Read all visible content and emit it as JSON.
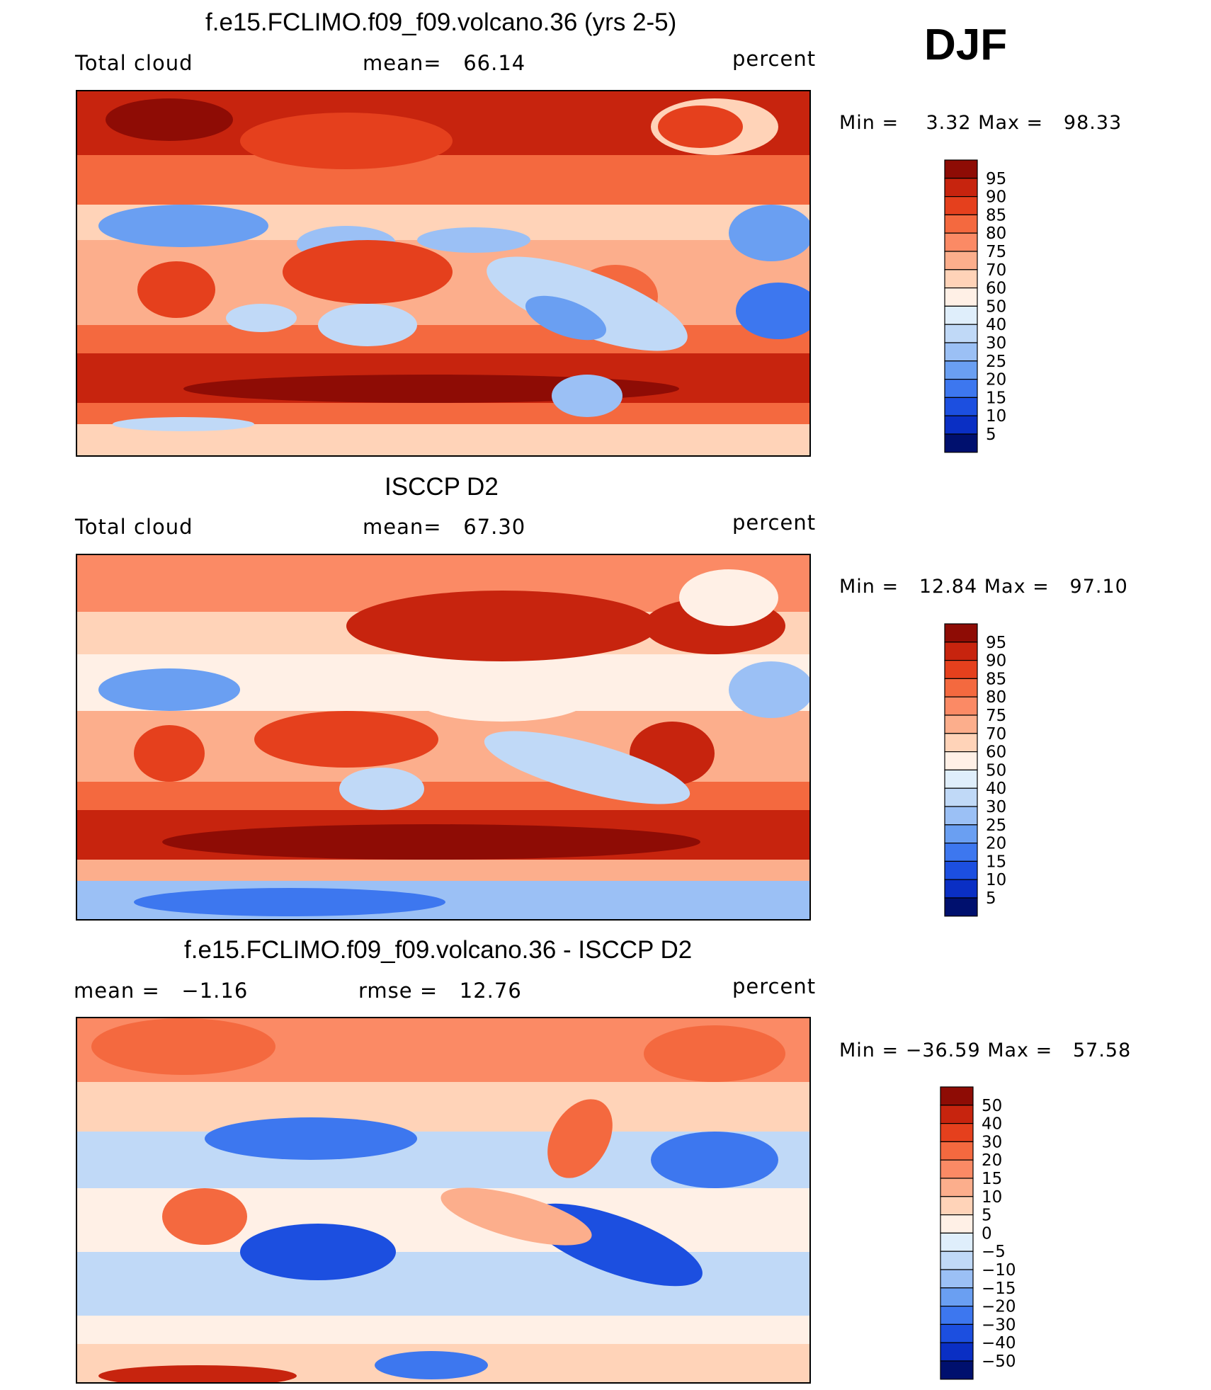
{
  "season": "DJF",
  "colors": {
    "warm": [
      "#fff0e6",
      "#ffd3b8",
      "#fcae8c",
      "#fb8a65",
      "#f4693f",
      "#e5401d",
      "#c7240e",
      "#8e0c05"
    ],
    "cool": [
      "#dfeefb",
      "#c0d9f7",
      "#9bc0f5",
      "#6a9ff2",
      "#3d77ef",
      "#1c4fe0",
      "#0a2fc4",
      "#051f8f"
    ],
    "cool_dark": "#00106e"
  },
  "panels": [
    {
      "title": "f.e15.FCLIMO.f09_f09.volcano.36 (yrs 2-5)",
      "left_label": "Total cloud",
      "center_label": "mean=   66.14",
      "units": "percent",
      "minmax": "Min =    3.32 Max =   98.33"
    },
    {
      "title": "ISCCP D2",
      "left_label": "Total cloud",
      "center_label": "mean=   67.30",
      "units": "percent",
      "minmax": "Min =   12.84 Max =   97.10"
    },
    {
      "title": "f.e15.FCLIMO.f09_f09.volcano.36 - ISCCP D2",
      "left_label": "mean =   −1.16",
      "center_label": "rmse =   12.76",
      "units": "percent",
      "minmax": "Min = −36.59 Max =   57.58"
    }
  ],
  "chart_data": [
    {
      "type": "heatmap",
      "title": "f.e15.FCLIMO.f09_f09.volcano.36 (yrs 2-5)",
      "variable": "Total cloud",
      "units": "percent",
      "mean": 66.14,
      "min": 3.32,
      "max": 98.33,
      "colorbar_levels": [
        95,
        90,
        85,
        80,
        75,
        70,
        60,
        50,
        40,
        30,
        25,
        20,
        15,
        10,
        5
      ],
      "colorbar_colors": [
        "#8e0c05",
        "#c7240e",
        "#e5401d",
        "#f4693f",
        "#fb8a65",
        "#fcae8c",
        "#ffd3b8",
        "#fff0e6",
        "#dfeefb",
        "#c0d9f7",
        "#9bc0f5",
        "#6a9ff2",
        "#3d77ef",
        "#1c4fe0",
        "#0a2fc4",
        "#00106e"
      ]
    },
    {
      "type": "heatmap",
      "title": "ISCCP D2",
      "variable": "Total cloud",
      "units": "percent",
      "mean": 67.3,
      "min": 12.84,
      "max": 97.1,
      "colorbar_levels": [
        95,
        90,
        85,
        80,
        75,
        70,
        60,
        50,
        40,
        30,
        25,
        20,
        15,
        10,
        5
      ],
      "colorbar_colors": [
        "#8e0c05",
        "#c7240e",
        "#e5401d",
        "#f4693f",
        "#fb8a65",
        "#fcae8c",
        "#ffd3b8",
        "#fff0e6",
        "#dfeefb",
        "#c0d9f7",
        "#9bc0f5",
        "#6a9ff2",
        "#3d77ef",
        "#1c4fe0",
        "#0a2fc4",
        "#00106e"
      ]
    },
    {
      "type": "heatmap",
      "title": "f.e15.FCLIMO.f09_f09.volcano.36 - ISCCP D2",
      "units": "percent",
      "mean": -1.16,
      "rmse": 12.76,
      "min": -36.59,
      "max": 57.58,
      "colorbar_levels": [
        50,
        40,
        30,
        20,
        15,
        10,
        5,
        0,
        -5,
        -10,
        -15,
        -20,
        -30,
        -40,
        -50
      ],
      "colorbar_tick_labels": [
        "50",
        "40",
        "30",
        "20",
        "15",
        "10",
        "5",
        "0",
        "−5",
        "−10",
        "−15",
        "−20",
        "−30",
        "−40",
        "−50"
      ],
      "colorbar_colors": [
        "#8e0c05",
        "#c7240e",
        "#e5401d",
        "#f4693f",
        "#fb8a65",
        "#fcae8c",
        "#ffd3b8",
        "#fff0e6",
        "#dfeefb",
        "#c0d9f7",
        "#9bc0f5",
        "#6a9ff2",
        "#3d77ef",
        "#1c4fe0",
        "#0a2fc4",
        "#00106e"
      ]
    }
  ]
}
